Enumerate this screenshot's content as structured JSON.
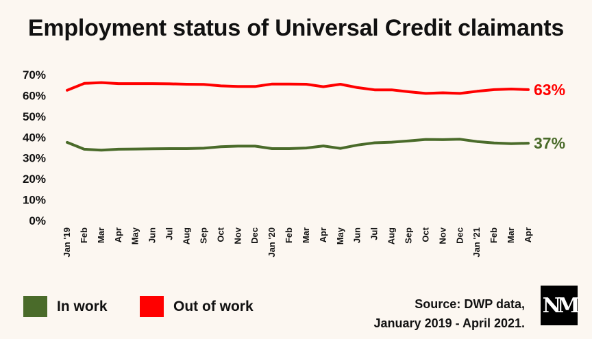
{
  "title": "Employment status of Universal Credit claimants",
  "colors": {
    "in_work": "#4a6b2a",
    "out_of_work": "#ff0000",
    "background": "#fcf7f1"
  },
  "legend": [
    {
      "label": "In work",
      "color": "#4a6b2a"
    },
    {
      "label": "Out of work",
      "color": "#ff0000"
    }
  ],
  "source": {
    "line1": "Source: DWP data,",
    "line2": "January 2019 - April 2021."
  },
  "logo_icon": "nm-logo-icon",
  "chart_data": {
    "type": "line",
    "title": "Employment status of Universal Credit claimants",
    "xlabel": "",
    "ylabel": "",
    "ylim": [
      0,
      70
    ],
    "yticks": [
      "0%",
      "10%",
      "20%",
      "30%",
      "40%",
      "50%",
      "60%",
      "70%"
    ],
    "grid": false,
    "legend_position": "bottom-left",
    "categories": [
      "Jan '19",
      "Feb",
      "Mar",
      "Apr",
      "May",
      "Jun",
      "Jul",
      "Aug",
      "Sep",
      "Oct",
      "Nov",
      "Dec",
      "Jan '20",
      "Feb",
      "Mar",
      "Apr",
      "May",
      "Jun",
      "Jul",
      "Aug",
      "Sep",
      "Oct",
      "Nov",
      "Dec",
      "Jan '21",
      "Feb",
      "Mar",
      "Apr"
    ],
    "series": [
      {
        "name": "Out of work",
        "color": "#ff0000",
        "end_label": "63%",
        "values": [
          62.5,
          65.8,
          66.2,
          65.7,
          65.7,
          65.7,
          65.6,
          65.4,
          65.3,
          64.6,
          64.3,
          64.3,
          65.5,
          65.5,
          65.4,
          64.2,
          65.4,
          63.8,
          62.7,
          62.7,
          61.8,
          61.0,
          61.3,
          61.0,
          62.0,
          62.8,
          63.1,
          62.8
        ]
      },
      {
        "name": "In work",
        "color": "#4a6b2a",
        "end_label": "37%",
        "values": [
          37.5,
          34.2,
          33.8,
          34.2,
          34.3,
          34.4,
          34.5,
          34.5,
          34.7,
          35.4,
          35.7,
          35.7,
          34.5,
          34.5,
          34.8,
          35.8,
          34.6,
          36.2,
          37.3,
          37.6,
          38.2,
          38.9,
          38.8,
          39.0,
          37.9,
          37.2,
          36.9,
          37.1
        ]
      }
    ]
  }
}
